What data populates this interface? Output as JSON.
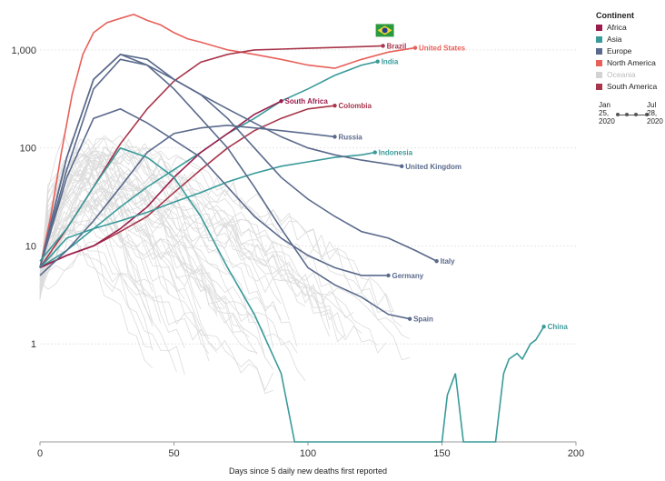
{
  "chart_data": {
    "type": "line",
    "xlabel": "Days since 5 daily new deaths first reported",
    "ylabel": "",
    "xlim": [
      0,
      200
    ],
    "ylim": [
      0.1,
      2500
    ],
    "y_scale": "log",
    "x_ticks": [
      0,
      50,
      100,
      150,
      200
    ],
    "y_ticks": [
      1,
      10,
      100,
      1000
    ],
    "y_tick_labels": [
      "1",
      "10",
      "100",
      "1,000"
    ],
    "grid": true,
    "legend_position": "right",
    "colors": {
      "Africa": "#9b1b4b",
      "Asia": "#3a9a9a",
      "Europe": "#5a6a8c",
      "North America": "#e8605a",
      "Oceania": "#d3d3d3",
      "South America": "#a8354a",
      "background": "#dcdcdc"
    },
    "series": [
      {
        "name": "United States",
        "continent": "North America",
        "label": "United States",
        "x": [
          0,
          4,
          8,
          12,
          16,
          20,
          25,
          30,
          35,
          40,
          45,
          50,
          55,
          60,
          70,
          80,
          90,
          100,
          110,
          120,
          130,
          140
        ],
        "y": [
          6,
          20,
          90,
          350,
          900,
          1500,
          1900,
          2100,
          2300,
          2000,
          1800,
          1500,
          1300,
          1200,
          1000,
          900,
          800,
          700,
          650,
          800,
          950,
          1050
        ]
      },
      {
        "name": "Brazil",
        "continent": "South America",
        "label": "Brazil",
        "x": [
          0,
          10,
          20,
          30,
          40,
          50,
          60,
          70,
          80,
          90,
          100,
          110,
          120,
          128
        ],
        "y": [
          6,
          15,
          40,
          110,
          250,
          480,
          750,
          900,
          1000,
          1020,
          1040,
          1060,
          1080,
          1100
        ]
      },
      {
        "name": "India",
        "continent": "Asia",
        "label": "India",
        "x": [
          0,
          10,
          20,
          30,
          40,
          50,
          60,
          70,
          80,
          90,
          100,
          110,
          120,
          126
        ],
        "y": [
          6,
          9,
          15,
          25,
          40,
          60,
          90,
          140,
          200,
          300,
          400,
          550,
          700,
          760
        ]
      },
      {
        "name": "Colombia",
        "continent": "South America",
        "label": "Colombia",
        "x": [
          0,
          10,
          20,
          30,
          40,
          50,
          60,
          70,
          80,
          90,
          100,
          110
        ],
        "y": [
          6,
          8,
          10,
          14,
          20,
          35,
          60,
          100,
          150,
          200,
          250,
          270
        ]
      },
      {
        "name": "South Africa",
        "continent": "Africa",
        "label": "South Africa",
        "x": [
          0,
          10,
          20,
          30,
          40,
          50,
          60,
          70,
          80,
          90
        ],
        "y": [
          6,
          8,
          10,
          15,
          25,
          50,
          90,
          140,
          220,
          300
        ]
      },
      {
        "name": "Russia",
        "continent": "Europe",
        "label": "Russia",
        "x": [
          0,
          10,
          20,
          30,
          40,
          50,
          60,
          70,
          80,
          90,
          100,
          110
        ],
        "y": [
          5,
          9,
          18,
          40,
          90,
          140,
          160,
          170,
          160,
          150,
          140,
          130
        ]
      },
      {
        "name": "Indonesia",
        "continent": "Asia",
        "label": "Indonesia",
        "x": [
          0,
          10,
          20,
          30,
          40,
          50,
          60,
          70,
          80,
          90,
          100,
          110,
          120,
          125
        ],
        "y": [
          6,
          12,
          15,
          18,
          22,
          28,
          35,
          45,
          55,
          65,
          72,
          80,
          85,
          90
        ]
      },
      {
        "name": "United Kingdom",
        "continent": "Europe",
        "label": "United Kingdom",
        "x": [
          0,
          10,
          20,
          30,
          40,
          50,
          60,
          70,
          80,
          90,
          100,
          110,
          120,
          135
        ],
        "y": [
          6,
          80,
          500,
          900,
          800,
          500,
          350,
          250,
          180,
          130,
          100,
          85,
          75,
          65
        ]
      },
      {
        "name": "Italy",
        "continent": "Europe",
        "label": "Italy",
        "x": [
          0,
          10,
          20,
          30,
          40,
          50,
          60,
          70,
          80,
          90,
          100,
          110,
          120,
          130,
          140,
          148
        ],
        "y": [
          6,
          60,
          400,
          800,
          700,
          500,
          350,
          200,
          100,
          50,
          30,
          20,
          14,
          12,
          9,
          7
        ]
      },
      {
        "name": "Germany",
        "continent": "Europe",
        "label": "Germany",
        "x": [
          0,
          10,
          20,
          30,
          40,
          50,
          60,
          70,
          80,
          90,
          100,
          110,
          120,
          130
        ],
        "y": [
          6,
          50,
          200,
          250,
          180,
          120,
          80,
          40,
          20,
          12,
          8,
          6,
          5,
          5
        ]
      },
      {
        "name": "Spain",
        "continent": "Europe",
        "label": "Spain",
        "x": [
          0,
          10,
          20,
          30,
          40,
          50,
          60,
          70,
          80,
          90,
          100,
          110,
          120,
          130,
          138
        ],
        "y": [
          6,
          80,
          500,
          900,
          700,
          400,
          200,
          100,
          40,
          15,
          6,
          4,
          3,
          2,
          1.8
        ]
      },
      {
        "name": "China",
        "continent": "Asia",
        "label": "China",
        "x": [
          0,
          10,
          20,
          30,
          40,
          50,
          60,
          70,
          80,
          90,
          95,
          150,
          152,
          155,
          158,
          160,
          170,
          173,
          175,
          178,
          180,
          183,
          185,
          188
        ],
        "y": [
          7,
          15,
          40,
          100,
          80,
          50,
          20,
          6,
          2,
          0.5,
          0.1,
          0.1,
          0.3,
          0.5,
          0.1,
          0.1,
          0.1,
          0.5,
          0.7,
          0.8,
          0.7,
          1,
          1.1,
          1.5
        ]
      }
    ]
  },
  "legend": {
    "title": "Continent",
    "items": [
      {
        "label": "Africa",
        "color": "#9b1b4b"
      },
      {
        "label": "Asia",
        "color": "#3a9a9a"
      },
      {
        "label": "Europe",
        "color": "#5a6a8c"
      },
      {
        "label": "North America",
        "color": "#e8605a"
      },
      {
        "label": "Oceania",
        "color": "#d3d3d3"
      },
      {
        "label": "South America",
        "color": "#a8354a"
      }
    ]
  },
  "timeline": {
    "start_label_1": "Jan",
    "start_label_2": "25,",
    "start_label_3": "2020",
    "end_label_1": "Jul",
    "end_label_2": "28,",
    "end_label_3": "2020"
  }
}
